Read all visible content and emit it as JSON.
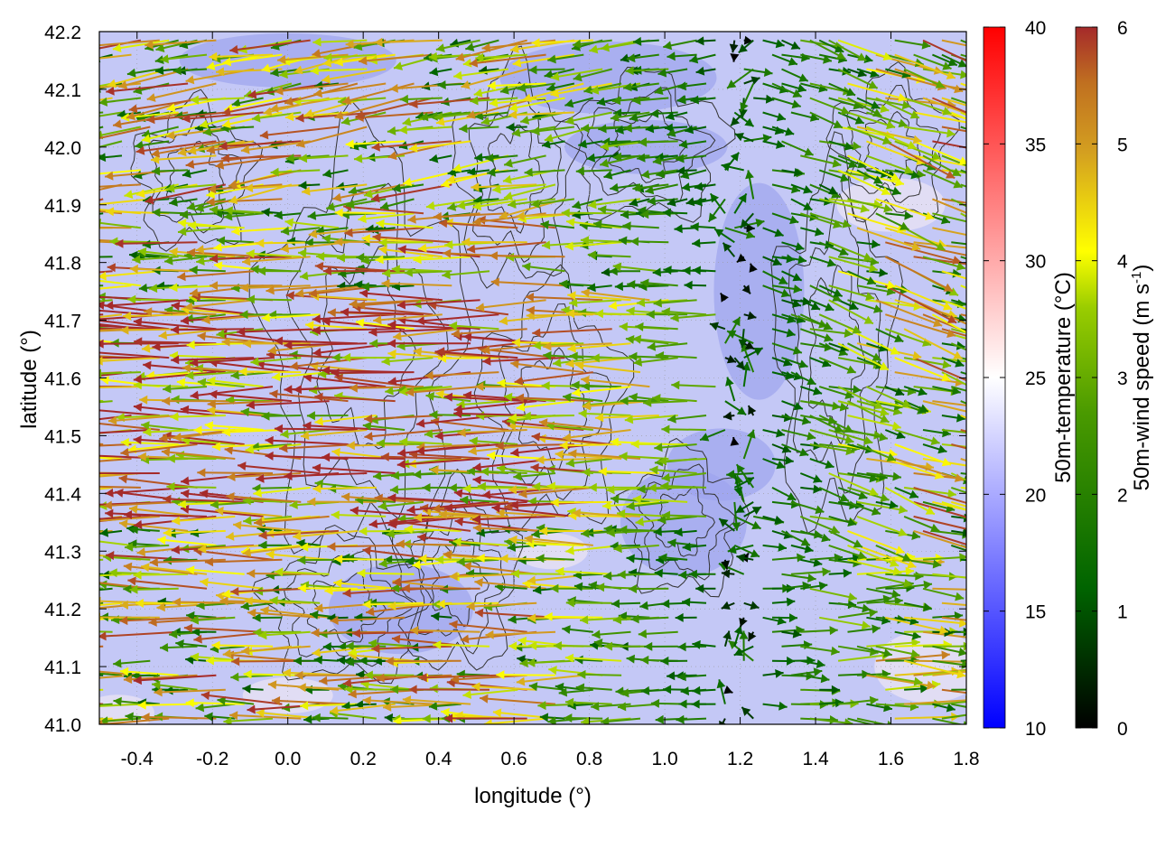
{
  "chart_data": {
    "type": "heatmap",
    "xlabel": "longitude (°)",
    "ylabel": "latitude (°)",
    "xlim": [
      -0.5,
      1.8
    ],
    "ylim": [
      41.0,
      42.2
    ],
    "xticks": [
      "-0.4",
      "-0.2",
      "0.0",
      "0.2",
      "0.4",
      "0.6",
      "0.8",
      "1.0",
      "1.2",
      "1.4",
      "1.6",
      "1.8"
    ],
    "yticks": [
      "41.0",
      "41.1",
      "41.2",
      "41.3",
      "41.4",
      "41.5",
      "41.6",
      "41.7",
      "41.8",
      "41.9",
      "42.0",
      "42.1",
      "42.2"
    ],
    "grid": true,
    "temperature_colorbar": {
      "label": "50m-temperature (°C)",
      "range": [
        10,
        40
      ],
      "ticks": [
        "10",
        "15",
        "20",
        "25",
        "30",
        "35",
        "40"
      ],
      "colors": [
        "#0000ff",
        "#ffffff",
        "#ff0000"
      ]
    },
    "wind_colorbar": {
      "label_prefix": "50m-wind speed (m s",
      "label_exp": "-1",
      "label_suffix": ")",
      "range": [
        0,
        6
      ],
      "ticks": [
        "0",
        "1",
        "2",
        "3",
        "4",
        "5",
        "6"
      ],
      "colors": [
        "#000000",
        "#006400",
        "#2e8b00",
        "#9acd00",
        "#ffff00",
        "#daa520",
        "#cd853f",
        "#a52a2a"
      ]
    },
    "background_temperature_c": 19,
    "wind_field": {
      "west_region": {
        "lon_range": [
          -0.5,
          1.1
        ],
        "direction": "from east (westward)",
        "speed_range_ms": [
          1,
          6
        ]
      },
      "east_region": {
        "lon_range": [
          1.25,
          1.8
        ],
        "direction": "from west-northwest (eastward)",
        "speed_range_ms": [
          1,
          6
        ]
      },
      "convergence_lon": 1.2,
      "grid_step_deg": {
        "lon": 0.025,
        "lat": 0.025
      }
    },
    "contours": {
      "color": "#333333",
      "description": "topographic elevation contours"
    }
  }
}
